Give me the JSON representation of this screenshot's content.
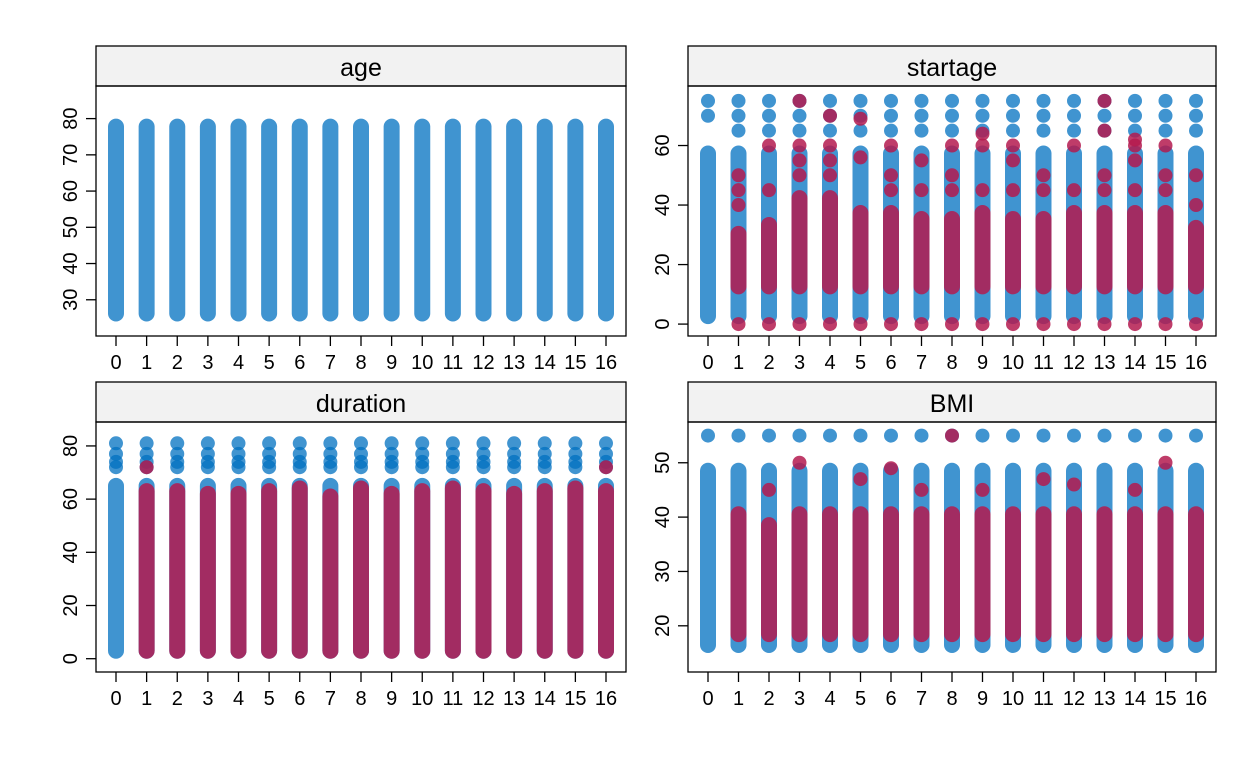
{
  "colors": {
    "observed": "#0070C0",
    "imputed": "#B41A4F",
    "strip_bg": "#F2F2F2",
    "frame": "#000000"
  },
  "chart_data": [
    {
      "type": "scatter",
      "panel": "age",
      "title": "age",
      "x": [
        0,
        1,
        2,
        3,
        4,
        5,
        6,
        7,
        8,
        9,
        10,
        11,
        12,
        13,
        14,
        15,
        16
      ],
      "xtick_labels": [
        "0",
        "1",
        "2",
        "3",
        "4",
        "5",
        "6",
        "7",
        "8",
        "9",
        "10",
        "11",
        "12",
        "13",
        "14",
        "15",
        "16"
      ],
      "ylim": [
        20,
        89
      ],
      "yticks": [
        30,
        40,
        50,
        60,
        70,
        80
      ],
      "series": [
        {
          "role": "observed",
          "groups": [
            0,
            1,
            2,
            3,
            4,
            5,
            6,
            7,
            8,
            9,
            10,
            11,
            12,
            13,
            14,
            15,
            16
          ],
          "dense_range": [
            [
              24,
              80
            ],
            [
              24,
              80
            ],
            [
              24,
              80
            ],
            [
              24,
              80
            ],
            [
              24,
              80
            ],
            [
              24,
              80
            ],
            [
              24,
              80
            ],
            [
              24,
              80
            ],
            [
              24,
              80
            ],
            [
              24,
              80
            ],
            [
              24,
              80
            ],
            [
              24,
              80
            ],
            [
              24,
              80
            ],
            [
              24,
              80
            ],
            [
              24,
              80
            ],
            [
              24,
              80
            ],
            [
              24,
              80
            ]
          ],
          "outliers": []
        }
      ]
    },
    {
      "type": "scatter",
      "panel": "startage",
      "title": "startage",
      "x": [
        0,
        1,
        2,
        3,
        4,
        5,
        6,
        7,
        8,
        9,
        10,
        11,
        12,
        13,
        14,
        15,
        16
      ],
      "xtick_labels": [
        "0",
        "1",
        "2",
        "3",
        "4",
        "5",
        "6",
        "7",
        "8",
        "9",
        "10",
        "11",
        "12",
        "13",
        "14",
        "15",
        "16"
      ],
      "ylim": [
        -4,
        80
      ],
      "yticks": [
        0,
        20,
        40,
        60
      ],
      "series": [
        {
          "role": "observed",
          "groups": [
            0,
            1,
            2,
            3,
            4,
            5,
            6,
            7,
            8,
            9,
            10,
            11,
            12,
            13,
            14,
            15,
            16
          ],
          "dense_range": [
            [
              0,
              60
            ],
            [
              0,
              60
            ],
            [
              0,
              60
            ],
            [
              0,
              60
            ],
            [
              0,
              60
            ],
            [
              0,
              60
            ],
            [
              0,
              60
            ],
            [
              0,
              60
            ],
            [
              0,
              60
            ],
            [
              0,
              60
            ],
            [
              0,
              60
            ],
            [
              0,
              60
            ],
            [
              0,
              60
            ],
            [
              0,
              60
            ],
            [
              0,
              60
            ],
            [
              0,
              60
            ],
            [
              0,
              60
            ]
          ],
          "outliers": [
            [
              70,
              75
            ],
            [
              65,
              70,
              75
            ],
            [
              65,
              70,
              75
            ],
            [
              65,
              70,
              75
            ],
            [
              65,
              70,
              75
            ],
            [
              65,
              70,
              75
            ],
            [
              65,
              70,
              75
            ],
            [
              65,
              70,
              75
            ],
            [
              65,
              70,
              75
            ],
            [
              65,
              70,
              75
            ],
            [
              65,
              70,
              75
            ],
            [
              65,
              70,
              75
            ],
            [
              65,
              70,
              75
            ],
            [
              65,
              70,
              75
            ],
            [
              65,
              70,
              75
            ],
            [
              65,
              70,
              75
            ],
            [
              65,
              70,
              75
            ]
          ]
        },
        {
          "role": "imputed",
          "groups": [
            1,
            2,
            3,
            4,
            5,
            6,
            7,
            8,
            9,
            10,
            11,
            12,
            13,
            14,
            15,
            16
          ],
          "dense_range": [
            [
              10,
              33
            ],
            [
              10,
              36
            ],
            [
              10,
              45
            ],
            [
              10,
              45
            ],
            [
              10,
              40
            ],
            [
              10,
              40
            ],
            [
              10,
              38
            ],
            [
              10,
              38
            ],
            [
              10,
              40
            ],
            [
              10,
              38
            ],
            [
              10,
              38
            ],
            [
              10,
              40
            ],
            [
              10,
              40
            ],
            [
              10,
              40
            ],
            [
              10,
              40
            ],
            [
              10,
              35
            ]
          ],
          "outliers": [
            [
              0,
              40,
              45,
              50
            ],
            [
              0,
              45,
              60
            ],
            [
              0,
              50,
              55,
              60,
              75
            ],
            [
              0,
              50,
              55,
              60,
              70
            ],
            [
              0,
              56,
              69
            ],
            [
              0,
              45,
              50,
              60
            ],
            [
              0,
              45,
              55
            ],
            [
              0,
              45,
              50,
              60
            ],
            [
              0,
              45,
              60,
              64
            ],
            [
              0,
              45,
              55,
              60
            ],
            [
              0,
              45,
              50
            ],
            [
              0,
              45,
              60
            ],
            [
              0,
              45,
              50,
              65,
              75
            ],
            [
              0,
              45,
              55,
              60,
              62
            ],
            [
              0,
              45,
              50,
              60
            ],
            [
              0,
              40,
              50
            ]
          ]
        }
      ]
    },
    {
      "type": "scatter",
      "panel": "duration",
      "title": "duration",
      "x": [
        0,
        1,
        2,
        3,
        4,
        5,
        6,
        7,
        8,
        9,
        10,
        11,
        12,
        13,
        14,
        15,
        16
      ],
      "xtick_labels": [
        "0",
        "1",
        "2",
        "3",
        "4",
        "5",
        "6",
        "7",
        "8",
        "9",
        "10",
        "11",
        "12",
        "13",
        "14",
        "15",
        "16"
      ],
      "ylim": [
        -5,
        89
      ],
      "yticks": [
        0,
        20,
        40,
        60,
        80
      ],
      "series": [
        {
          "role": "observed",
          "groups": [
            0,
            1,
            2,
            3,
            4,
            5,
            6,
            7,
            8,
            9,
            10,
            11,
            12,
            13,
            14,
            15,
            16
          ],
          "dense_range": [
            [
              0,
              68
            ],
            [
              0,
              68
            ],
            [
              0,
              68
            ],
            [
              0,
              68
            ],
            [
              0,
              68
            ],
            [
              0,
              68
            ],
            [
              0,
              68
            ],
            [
              0,
              68
            ],
            [
              0,
              68
            ],
            [
              0,
              68
            ],
            [
              0,
              68
            ],
            [
              0,
              68
            ],
            [
              0,
              68
            ],
            [
              0,
              68
            ],
            [
              0,
              68
            ],
            [
              0,
              68
            ],
            [
              0,
              68
            ]
          ],
          "outliers": [
            [
              72,
              74,
              77,
              81
            ],
            [
              72,
              74,
              77,
              81
            ],
            [
              72,
              74,
              77,
              81
            ],
            [
              72,
              74,
              77,
              81
            ],
            [
              72,
              74,
              77,
              81
            ],
            [
              72,
              74,
              77,
              81
            ],
            [
              72,
              74,
              77,
              81
            ],
            [
              72,
              74,
              77,
              81
            ],
            [
              72,
              74,
              77,
              81
            ],
            [
              72,
              74,
              77,
              81
            ],
            [
              72,
              74,
              77,
              81
            ],
            [
              72,
              74,
              77,
              81
            ],
            [
              72,
              74,
              77,
              81
            ],
            [
              72,
              74,
              77,
              81
            ],
            [
              72,
              74,
              77,
              81
            ],
            [
              72,
              74,
              77,
              81
            ],
            [
              72,
              74,
              77,
              81
            ]
          ]
        },
        {
          "role": "imputed",
          "groups": [
            1,
            2,
            3,
            4,
            5,
            6,
            7,
            8,
            9,
            10,
            11,
            12,
            13,
            14,
            15,
            16
          ],
          "dense_range": [
            [
              0,
              66
            ],
            [
              0,
              66
            ],
            [
              0,
              65
            ],
            [
              0,
              65
            ],
            [
              0,
              66
            ],
            [
              0,
              67
            ],
            [
              0,
              64
            ],
            [
              0,
              67
            ],
            [
              0,
              65
            ],
            [
              0,
              66
            ],
            [
              0,
              67
            ],
            [
              0,
              66
            ],
            [
              0,
              65
            ],
            [
              0,
              66
            ],
            [
              0,
              67
            ],
            [
              0,
              66
            ]
          ],
          "outliers": [
            [
              72
            ],
            [],
            [],
            [],
            [],
            [],
            [],
            [],
            [],
            [],
            [],
            [],
            [],
            [],
            [],
            [
              72
            ]
          ]
        }
      ]
    },
    {
      "type": "scatter",
      "panel": "BMI",
      "title": "BMI",
      "x": [
        0,
        1,
        2,
        3,
        4,
        5,
        6,
        7,
        8,
        9,
        10,
        11,
        12,
        13,
        14,
        15,
        16
      ],
      "xtick_labels": [
        "0",
        "1",
        "2",
        "3",
        "4",
        "5",
        "6",
        "7",
        "8",
        "9",
        "10",
        "11",
        "12",
        "13",
        "14",
        "15",
        "16"
      ],
      "ylim": [
        11.5,
        57.5
      ],
      "yticks": [
        20,
        30,
        40,
        50
      ],
      "series": [
        {
          "role": "observed",
          "groups": [
            0,
            1,
            2,
            3,
            4,
            5,
            6,
            7,
            8,
            9,
            10,
            11,
            12,
            13,
            14,
            15,
            16
          ],
          "dense_range": [
            [
              15,
              50
            ],
            [
              15,
              50
            ],
            [
              15,
              50
            ],
            [
              15,
              50
            ],
            [
              15,
              50
            ],
            [
              15,
              50
            ],
            [
              15,
              50
            ],
            [
              15,
              50
            ],
            [
              15,
              50
            ],
            [
              15,
              50
            ],
            [
              15,
              50
            ],
            [
              15,
              50
            ],
            [
              15,
              50
            ],
            [
              15,
              50
            ],
            [
              15,
              50
            ],
            [
              15,
              50
            ],
            [
              15,
              50
            ]
          ],
          "outliers": [
            [
              55
            ],
            [
              55
            ],
            [
              55
            ],
            [
              55
            ],
            [
              55
            ],
            [
              55
            ],
            [
              55
            ],
            [
              55
            ],
            [
              55
            ],
            [
              55
            ],
            [
              55
            ],
            [
              55
            ],
            [
              55
            ],
            [
              55
            ],
            [
              55
            ],
            [
              55
            ],
            [
              55
            ]
          ]
        },
        {
          "role": "imputed",
          "groups": [
            1,
            2,
            3,
            4,
            5,
            6,
            7,
            8,
            9,
            10,
            11,
            12,
            13,
            14,
            15,
            16
          ],
          "dense_range": [
            [
              17,
              42
            ],
            [
              17,
              40
            ],
            [
              17,
              42
            ],
            [
              17,
              42
            ],
            [
              17,
              42
            ],
            [
              17,
              42
            ],
            [
              17,
              42
            ],
            [
              17,
              42
            ],
            [
              17,
              42
            ],
            [
              17,
              42
            ],
            [
              17,
              42
            ],
            [
              17,
              42
            ],
            [
              17,
              42
            ],
            [
              17,
              42
            ],
            [
              17,
              42
            ],
            [
              17,
              42
            ]
          ],
          "outliers": [
            [],
            [
              45
            ],
            [
              50
            ],
            [],
            [
              47
            ],
            [
              49
            ],
            [
              45
            ],
            [
              55
            ],
            [
              45
            ],
            [],
            [
              47
            ],
            [
              46
            ],
            [],
            [
              45
            ],
            [
              50
            ],
            []
          ]
        }
      ]
    }
  ]
}
